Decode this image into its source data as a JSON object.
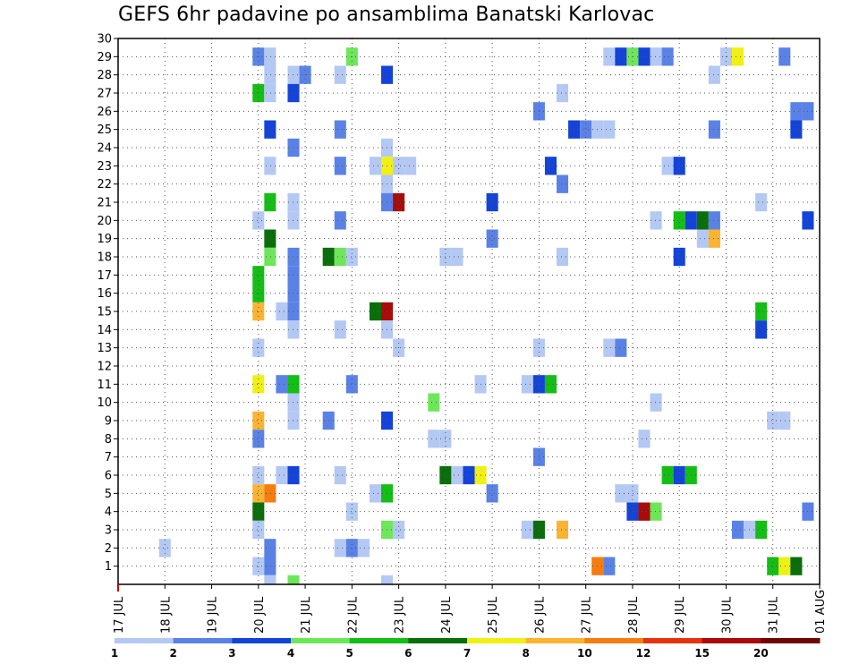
{
  "chart_data": {
    "type": "heatmap",
    "title": "GEFS 6hr padavine po ansamblima Banatski Karlovac",
    "x_ticks": [
      "17 JUL",
      "18 JUL",
      "19 JUL",
      "20 JUL",
      "21 JUL",
      "22 JUL",
      "23 JUL",
      "24 JUL",
      "25 JUL",
      "26 JUL",
      "27 JUL",
      "28 JUL",
      "29 JUL",
      "30 JUL",
      "31 JUL",
      "01 AUG"
    ],
    "y_ticks": [
      1,
      2,
      3,
      4,
      5,
      6,
      7,
      8,
      9,
      10,
      11,
      12,
      13,
      14,
      15,
      16,
      17,
      18,
      19,
      20,
      21,
      22,
      23,
      24,
      25,
      26,
      27,
      28,
      29,
      30
    ],
    "ylim": [
      0,
      30
    ],
    "grid": true,
    "legend": {
      "placement": "bottom",
      "labels": [
        "1",
        "2",
        "3",
        "4",
        "5",
        "6",
        "7",
        "8",
        "10",
        "12",
        "15",
        "20"
      ],
      "colors": [
        "#b4c8f4",
        "#5a82e6",
        "#1443d8",
        "#6ee65a",
        "#14be14",
        "#0a6e0a",
        "#f0f014",
        "#fab432",
        "#f57d0f",
        "#e6320f",
        "#aa0a0a",
        "#6e0505"
      ]
    },
    "colors": {
      "1": "#b4c8f4",
      "2": "#5a82e6",
      "3": "#1443d8",
      "4": "#6ee65a",
      "5": "#14be14",
      "6": "#0a6e0a",
      "7": "#f0f014",
      "8": "#fab432",
      "10": "#f57d0f",
      "12": "#e6320f",
      "15": "#aa0a0a",
      "20": "#6e0505"
    },
    "cells": [
      [
        29,
        "2",
        20.0
      ],
      [
        29,
        "1",
        20.25
      ],
      [
        29,
        "4",
        22.0
      ],
      [
        29,
        "1",
        27.5
      ],
      [
        29,
        "3",
        27.75
      ],
      [
        29,
        "4",
        28.0
      ],
      [
        29,
        "3",
        28.25
      ],
      [
        29,
        "1",
        28.5
      ],
      [
        29,
        "2",
        28.75
      ],
      [
        29,
        "1",
        30.0
      ],
      [
        29,
        "7",
        30.25
      ],
      [
        29,
        "2",
        31.25
      ],
      [
        28,
        "1",
        20.25
      ],
      [
        28,
        "1",
        20.75
      ],
      [
        28,
        "2",
        21.0
      ],
      [
        28,
        "1",
        21.75
      ],
      [
        28,
        "3",
        22.75
      ],
      [
        28,
        "1",
        29.75
      ],
      [
        27,
        "5",
        20.0
      ],
      [
        27,
        "1",
        20.25
      ],
      [
        27,
        "3",
        20.75
      ],
      [
        27,
        "1",
        26.5
      ],
      [
        26,
        "2",
        26.0
      ],
      [
        26,
        "2",
        31.5
      ],
      [
        26,
        "2",
        31.75
      ],
      [
        25,
        "3",
        20.25
      ],
      [
        25,
        "2",
        21.75
      ],
      [
        25,
        "3",
        26.75
      ],
      [
        25,
        "2",
        27.0
      ],
      [
        25,
        "1",
        27.25
      ],
      [
        25,
        "1",
        27.5
      ],
      [
        25,
        "2",
        29.75
      ],
      [
        25,
        "3",
        31.5
      ],
      [
        24,
        "1",
        22.75
      ],
      [
        24,
        "2",
        20.75
      ],
      [
        23,
        "1",
        20.25
      ],
      [
        23,
        "2",
        21.75
      ],
      [
        23,
        "1",
        22.5
      ],
      [
        23,
        "7",
        22.75
      ],
      [
        23,
        "1",
        23.0
      ],
      [
        23,
        "1",
        23.25
      ],
      [
        23,
        "3",
        26.25
      ],
      [
        23,
        "1",
        28.75
      ],
      [
        23,
        "3",
        29.0
      ],
      [
        22,
        "1",
        22.75
      ],
      [
        22,
        "2",
        26.5
      ],
      [
        21,
        "5",
        20.25
      ],
      [
        21,
        "1",
        20.75
      ],
      [
        21,
        "2",
        22.75
      ],
      [
        21,
        "15",
        23.0
      ],
      [
        21,
        "3",
        25.0
      ],
      [
        21,
        "1",
        30.75
      ],
      [
        20,
        "1",
        20.0
      ],
      [
        20,
        "1",
        20.75
      ],
      [
        20,
        "2",
        21.75
      ],
      [
        20,
        "1",
        28.5
      ],
      [
        20,
        "5",
        29.0
      ],
      [
        20,
        "3",
        29.25
      ],
      [
        20,
        "6",
        29.5
      ],
      [
        20,
        "2",
        29.75
      ],
      [
        20,
        "3",
        31.75
      ],
      [
        19,
        "6",
        20.25
      ],
      [
        19,
        "2",
        25.0
      ],
      [
        19,
        "1",
        29.5
      ],
      [
        19,
        "8",
        29.75
      ],
      [
        18,
        "4",
        20.25
      ],
      [
        18,
        "2",
        20.75
      ],
      [
        18,
        "6",
        21.5
      ],
      [
        18,
        "4",
        21.75
      ],
      [
        18,
        "1",
        22.0
      ],
      [
        18,
        "1",
        24.0
      ],
      [
        18,
        "1",
        24.25
      ],
      [
        18,
        "1",
        26.5
      ],
      [
        18,
        "3",
        29.0
      ],
      [
        17,
        "2",
        20.75
      ],
      [
        17,
        "5",
        20.0
      ],
      [
        16,
        "2",
        20.75
      ],
      [
        16,
        "5",
        20.0
      ],
      [
        15,
        "8",
        20.0
      ],
      [
        15,
        "1",
        20.5
      ],
      [
        15,
        "2",
        20.75
      ],
      [
        15,
        "6",
        22.5
      ],
      [
        15,
        "15",
        22.75
      ],
      [
        15,
        "5",
        30.75
      ],
      [
        14,
        "1",
        20.75
      ],
      [
        14,
        "1",
        21.75
      ],
      [
        14,
        "1",
        22.75
      ],
      [
        14,
        "3",
        30.75
      ],
      [
        13,
        "1",
        20.0
      ],
      [
        13,
        "1",
        23.0
      ],
      [
        13,
        "1",
        26.0
      ],
      [
        13,
        "1",
        27.5
      ],
      [
        13,
        "2",
        27.75
      ],
      [
        11,
        "7",
        20.0
      ],
      [
        11,
        "2",
        20.5
      ],
      [
        11,
        "5",
        20.75
      ],
      [
        11,
        "2",
        22.0
      ],
      [
        11,
        "1",
        24.75
      ],
      [
        11,
        "1",
        25.75
      ],
      [
        11,
        "3",
        26.0
      ],
      [
        11,
        "5",
        26.25
      ],
      [
        10,
        "1",
        20.75
      ],
      [
        10,
        "4",
        23.75
      ],
      [
        10,
        "1",
        28.5
      ],
      [
        9,
        "8",
        20.0
      ],
      [
        9,
        "1",
        20.75
      ],
      [
        9,
        "2",
        21.5
      ],
      [
        9,
        "3",
        22.75
      ],
      [
        9,
        "1",
        31.0
      ],
      [
        9,
        "1",
        31.25
      ],
      [
        8,
        "2",
        20.0
      ],
      [
        8,
        "1",
        23.75
      ],
      [
        8,
        "1",
        24.0
      ],
      [
        8,
        "1",
        28.25
      ],
      [
        7,
        "2",
        26.0
      ],
      [
        6,
        "1",
        20.0
      ],
      [
        6,
        "1",
        20.5
      ],
      [
        6,
        "3",
        20.75
      ],
      [
        6,
        "1",
        21.75
      ],
      [
        6,
        "6",
        24.0
      ],
      [
        6,
        "1",
        24.25
      ],
      [
        6,
        "3",
        24.5
      ],
      [
        6,
        "7",
        24.75
      ],
      [
        6,
        "5",
        28.75
      ],
      [
        6,
        "3",
        29.0
      ],
      [
        6,
        "5",
        29.25
      ],
      [
        5,
        "8",
        20.0
      ],
      [
        5,
        "10",
        20.25
      ],
      [
        5,
        "1",
        22.5
      ],
      [
        5,
        "5",
        22.75
      ],
      [
        5,
        "2",
        25.0
      ],
      [
        5,
        "1",
        27.75
      ],
      [
        5,
        "1",
        28.0
      ],
      [
        4,
        "6",
        20.0
      ],
      [
        4,
        "1",
        22.0
      ],
      [
        4,
        "3",
        28.0
      ],
      [
        4,
        "15",
        28.25
      ],
      [
        4,
        "4",
        28.5
      ],
      [
        4,
        "2",
        31.75
      ],
      [
        3,
        "1",
        20.0
      ],
      [
        3,
        "4",
        22.75
      ],
      [
        3,
        "1",
        23.0
      ],
      [
        3,
        "1",
        25.75
      ],
      [
        3,
        "1",
        26.0
      ],
      [
        3,
        "6",
        26.0
      ],
      [
        3,
        "8",
        26.5
      ],
      [
        3,
        "2",
        30.25
      ],
      [
        3,
        "1",
        30.5
      ],
      [
        3,
        "5",
        30.75
      ],
      [
        2,
        "1",
        18.0
      ],
      [
        2,
        "2",
        20.25
      ],
      [
        2,
        "1",
        21.75
      ],
      [
        2,
        "2",
        22.0
      ],
      [
        2,
        "1",
        22.25
      ],
      [
        1,
        "1",
        20.0
      ],
      [
        1,
        "2",
        20.25
      ],
      [
        1,
        "10",
        27.25
      ],
      [
        1,
        "2",
        27.5
      ],
      [
        1,
        "5",
        31.0
      ],
      [
        1,
        "7",
        31.25
      ],
      [
        1,
        "6",
        31.5
      ],
      [
        0,
        "1",
        20.25
      ],
      [
        0,
        "4",
        20.75
      ],
      [
        0,
        "1",
        22.75
      ]
    ]
  }
}
